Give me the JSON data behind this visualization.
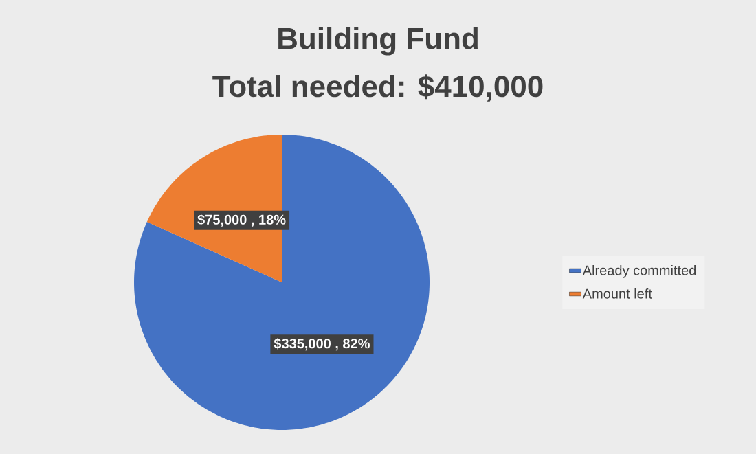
{
  "chart_data": {
    "type": "pie",
    "title": "Building Fund",
    "subtitle": "Total needed: $410,000",
    "categories": [
      "Already committed",
      "Amount left"
    ],
    "values": [
      335000,
      75000
    ],
    "colors": [
      "#4472c4",
      "#ed7d31"
    ],
    "value_labels": [
      "$335,000 , 82%",
      "$75,000 , 18%"
    ],
    "legend": "right"
  }
}
